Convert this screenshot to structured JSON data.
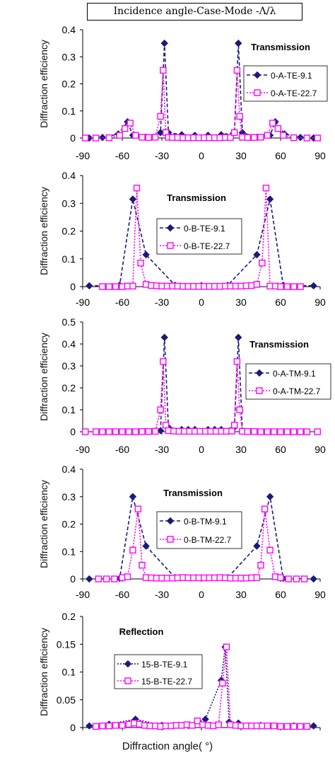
{
  "header_title": "Incidence angle-Case-Mode -Λ/λ",
  "x_axis_caption": "Diffraction angle( °)",
  "colors": {
    "series1": "#1a1a7a",
    "series2": "#ff00ff",
    "axis": "#000000"
  },
  "chart_data": [
    {
      "type": "line",
      "panel_label": "Transmission",
      "ylabel": "Diffraction efficiency",
      "xlim": [
        -90,
        90
      ],
      "ylim": [
        0,
        0.4
      ],
      "xticks": [
        -90,
        -60,
        -30,
        0,
        30,
        60,
        90
      ],
      "yticks": [
        0,
        0.1,
        0.2,
        0.3,
        0.4
      ],
      "series": [
        {
          "name": "0-A-TE-9.1",
          "marker": "diamond",
          "style": "dashed",
          "x": [
            -85,
            -75,
            -63,
            -56,
            -52,
            -42,
            -31,
            -28,
            -25,
            -15,
            -5,
            5,
            15,
            25,
            28,
            31,
            42,
            52,
            56,
            63,
            75,
            85
          ],
          "y": [
            0,
            0.002,
            0.015,
            0.06,
            0.01,
            0.003,
            0.02,
            0.35,
            0.02,
            0.012,
            0.01,
            0.01,
            0.012,
            0.02,
            0.35,
            0.02,
            0.003,
            0.01,
            0.06,
            0.015,
            0.002,
            0
          ]
        },
        {
          "name": "0-A-TE-22.7",
          "marker": "square",
          "style": "dotted",
          "x": [
            -88,
            -80,
            -70,
            -62,
            -58,
            -54,
            -50,
            -45,
            -40,
            -35,
            -31,
            -29,
            -27,
            -25,
            -22,
            -18,
            -14,
            -10,
            -6,
            -2,
            2,
            6,
            10,
            14,
            18,
            22,
            25,
            27,
            29,
            31,
            35,
            40,
            45,
            50,
            54,
            58,
            62,
            70,
            80,
            88
          ],
          "y": [
            0,
            0,
            0.001,
            0.01,
            0.035,
            0.055,
            0.01,
            0.003,
            0.002,
            0.003,
            0.08,
            0.25,
            0.02,
            0.003,
            0.002,
            0.002,
            0.001,
            0.001,
            0.001,
            0.001,
            0.001,
            0.001,
            0.001,
            0.001,
            0.002,
            0.002,
            0.02,
            0.25,
            0.08,
            0.003,
            0.002,
            0.002,
            0.003,
            0.01,
            0.055,
            0.035,
            0.01,
            0.001,
            0,
            0
          ]
        }
      ],
      "legend_position": "right"
    },
    {
      "type": "line",
      "panel_label": "Transmission",
      "ylabel": "Diffraction efficiency",
      "xlim": [
        -90,
        90
      ],
      "ylim": [
        0,
        0.4
      ],
      "xticks": [
        -90,
        -60,
        -30,
        0,
        30,
        60,
        90
      ],
      "yticks": [
        0,
        0.1,
        0.2,
        0.3,
        0.4
      ],
      "series": [
        {
          "name": "0-B-TE-9.1",
          "marker": "diamond",
          "style": "dashed",
          "x": [
            -85,
            -62,
            -52,
            -42,
            -20,
            0,
            20,
            42,
            52,
            62,
            85
          ],
          "y": [
            0.003,
            0.005,
            0.315,
            0.115,
            0.005,
            0.004,
            0.005,
            0.115,
            0.315,
            0.005,
            0.003
          ]
        },
        {
          "name": "0-B-TE-22.7",
          "marker": "square",
          "style": "dotted",
          "x": [
            -75,
            -70,
            -65,
            -60,
            -56,
            -52,
            -49,
            -46,
            -42,
            -38,
            -34,
            -30,
            -26,
            -22,
            -18,
            -14,
            -10,
            -6,
            -2,
            2,
            6,
            10,
            14,
            18,
            22,
            26,
            30,
            34,
            38,
            42,
            46,
            49,
            52,
            56,
            60,
            65,
            70,
            75
          ],
          "y": [
            0,
            0,
            0,
            0,
            0.002,
            0.002,
            0.355,
            0.085,
            0.008,
            0.004,
            0.003,
            0.002,
            0.002,
            0.002,
            0.002,
            0.001,
            0.001,
            0.001,
            0.001,
            0.001,
            0.001,
            0.001,
            0.001,
            0.002,
            0.002,
            0.002,
            0.002,
            0.003,
            0.004,
            0.008,
            0.085,
            0.355,
            0.002,
            0.002,
            0,
            0,
            0,
            0
          ]
        }
      ],
      "legend_position": "center"
    },
    {
      "type": "line",
      "panel_label": "Transmission",
      "ylabel": "Diffraction efficiency",
      "xlim": [
        -90,
        90
      ],
      "ylim": [
        0,
        0.5
      ],
      "xticks": [
        -90,
        -60,
        -30,
        0,
        30,
        60,
        90
      ],
      "yticks": [
        0,
        0.1,
        0.2,
        0.3,
        0.4,
        0.5
      ],
      "series": [
        {
          "name": "0-A-TM-9.1",
          "marker": "diamond",
          "style": "dashed",
          "x": [
            -31,
            -28,
            -25,
            -15,
            -10,
            -5,
            5,
            10,
            15,
            25,
            28,
            31
          ],
          "y": [
            0.005,
            0.43,
            0.02,
            0.01,
            0.01,
            0.01,
            0.01,
            0.01,
            0.01,
            0.02,
            0.43,
            0.005
          ]
        },
        {
          "name": "0-A-TM-22.7",
          "marker": "square",
          "style": "dotted",
          "x": [
            -88,
            -80,
            -75,
            -70,
            -65,
            -60,
            -55,
            -50,
            -45,
            -40,
            -35,
            -31,
            -29,
            -27,
            -25,
            -21,
            -17,
            -13,
            -9,
            -5,
            -1,
            3,
            7,
            11,
            15,
            19,
            23,
            25,
            27,
            29,
            31,
            35,
            40,
            45,
            50,
            55,
            60,
            65,
            70,
            75,
            80,
            88
          ],
          "y": [
            0,
            0,
            0,
            0,
            0,
            0,
            0,
            0,
            0.001,
            0.001,
            0.002,
            0.1,
            0.32,
            0.03,
            0.005,
            0.003,
            0.002,
            0.002,
            0.002,
            0.002,
            0.002,
            0.002,
            0.002,
            0.002,
            0.002,
            0.002,
            0.003,
            0.03,
            0.32,
            0.1,
            0.002,
            0.001,
            0.001,
            0,
            0,
            0,
            0,
            0,
            0,
            0,
            0,
            0
          ]
        }
      ],
      "legend_position": "right"
    },
    {
      "type": "line",
      "panel_label": "Transmission",
      "ylabel": "Diffraction efficiency",
      "xlim": [
        -90,
        90
      ],
      "ylim": [
        0,
        0.4
      ],
      "xticks": [
        -90,
        -60,
        -30,
        0,
        30,
        60,
        90
      ],
      "yticks": [
        0,
        0.1,
        0.2,
        0.3,
        0.4
      ],
      "series": [
        {
          "name": "0-B-TM-9.1",
          "marker": "diamond",
          "style": "dashed",
          "x": [
            -85,
            -62,
            -52,
            -42,
            -20,
            0,
            20,
            42,
            52,
            62,
            85
          ],
          "y": [
            0,
            0.002,
            0.3,
            0.12,
            0.005,
            0.004,
            0.005,
            0.12,
            0.3,
            0.002,
            0
          ]
        },
        {
          "name": "0-B-TM-22.7",
          "marker": "square",
          "style": "dotted",
          "x": [
            -78,
            -72,
            -66,
            -60,
            -56,
            -52,
            -48,
            -45,
            -42,
            -38,
            -34,
            -30,
            -26,
            -22,
            -18,
            -14,
            -10,
            -6,
            -2,
            2,
            6,
            10,
            14,
            18,
            22,
            26,
            30,
            34,
            38,
            42,
            45,
            48,
            52,
            56,
            60,
            66,
            72,
            78
          ],
          "y": [
            0,
            0,
            0,
            0.005,
            0.008,
            0.105,
            0.255,
            0.05,
            0.005,
            0.004,
            0.003,
            0.003,
            0.003,
            0.003,
            0.004,
            0.005,
            0.004,
            0.004,
            0.004,
            0.004,
            0.004,
            0.004,
            0.005,
            0.004,
            0.003,
            0.003,
            0.003,
            0.003,
            0.004,
            0.005,
            0.05,
            0.255,
            0.105,
            0.008,
            0.005,
            0,
            0,
            0
          ]
        }
      ],
      "legend_position": "center"
    },
    {
      "type": "line",
      "panel_label": "Reflection",
      "ylabel": "Diffraction efficiency",
      "xlim": [
        -90,
        90
      ],
      "ylim": [
        0,
        0.2
      ],
      "xticks": [
        -90,
        -60,
        -30,
        0,
        30,
        60,
        90
      ],
      "yticks": [
        0,
        0.05,
        0.1,
        0.15,
        0.2
      ],
      "series": [
        {
          "name": "15-B-TE-9.1",
          "marker": "diamond",
          "style": "dotted",
          "x": [
            -85,
            -70,
            -50,
            -30,
            -10,
            3,
            15,
            18,
            21,
            28,
            45,
            70,
            85
          ],
          "y": [
            0.003,
            0.006,
            0.015,
            0.004,
            0.004,
            0.015,
            0.085,
            0.145,
            0.01,
            0.008,
            0.004,
            0.003,
            0.003
          ]
        },
        {
          "name": "15-B-TE-22.7",
          "marker": "square",
          "style": "dotted",
          "x": [
            -80,
            -75,
            -70,
            -65,
            -60,
            -55,
            -51,
            -47,
            -43,
            -39,
            -35,
            -31,
            -27,
            -23,
            -19,
            -15,
            -11,
            -7,
            -3,
            1,
            5,
            9,
            13,
            16,
            19,
            22,
            26,
            30,
            34,
            38,
            42,
            46,
            50,
            55,
            60,
            65,
            70,
            75,
            80
          ],
          "y": [
            0.002,
            0.003,
            0.003,
            0.004,
            0.004,
            0.006,
            0.008,
            0.006,
            0.004,
            0.003,
            0.003,
            0.002,
            0.003,
            0.003,
            0.004,
            0.004,
            0.005,
            0.004,
            0.012,
            0.005,
            0.004,
            0.003,
            0.005,
            0.08,
            0.145,
            0.005,
            0.004,
            0.003,
            0.003,
            0.003,
            0.003,
            0.003,
            0.003,
            0.003,
            0.002,
            0.002,
            0.002,
            0.002,
            0.002
          ]
        }
      ],
      "legend_position": "center-left"
    }
  ]
}
